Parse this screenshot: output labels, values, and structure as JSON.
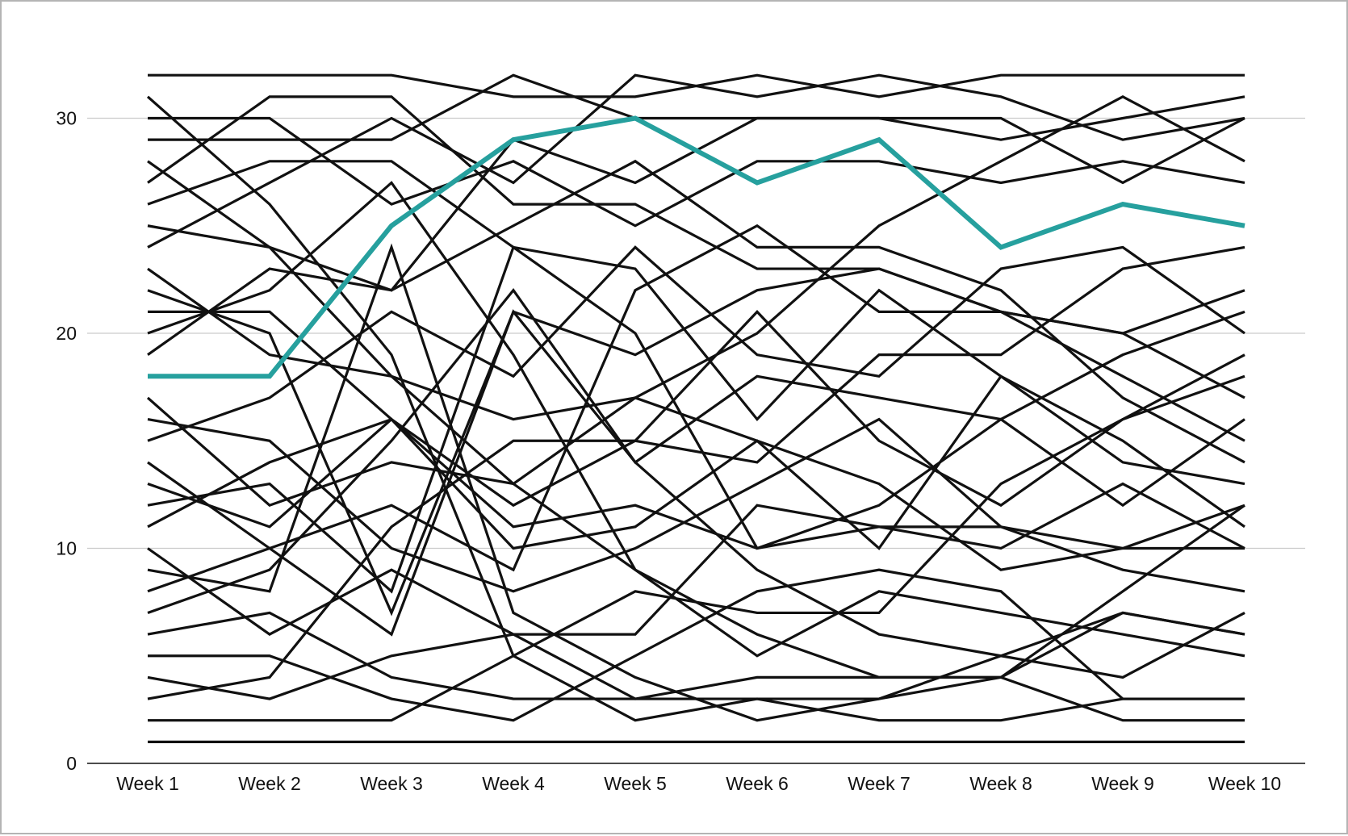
{
  "chart_data": {
    "type": "line",
    "title": "",
    "xlabel": "",
    "ylabel": "",
    "categories": [
      "Week 1",
      "Week 2",
      "Week 3",
      "Week 4",
      "Week 5",
      "Week 6",
      "Week 7",
      "Week 8",
      "Week 9",
      "Week 10"
    ],
    "y_ticks": [
      "0",
      "10",
      "20",
      "30"
    ],
    "ylim": [
      0,
      33
    ],
    "grid": "horizontal",
    "legend": "none",
    "colors": {
      "highlight": "#26a09e",
      "series": "#111111",
      "grid": "#cccccc",
      "axis": "#111111",
      "frame": "#b4b4b4"
    },
    "highlight_series": {
      "values": [
        18,
        18,
        25,
        29,
        30,
        27,
        29,
        24,
        26,
        25
      ]
    },
    "series": [
      {
        "values": [
          32,
          32,
          32,
          31,
          31,
          32,
          31,
          32,
          32,
          32
        ]
      },
      {
        "values": [
          31,
          26,
          19,
          5,
          2,
          3,
          2,
          2,
          3,
          3
        ]
      },
      {
        "values": [
          30,
          30,
          26,
          28,
          25,
          28,
          28,
          27,
          28,
          27
        ]
      },
      {
        "values": [
          29,
          29,
          29,
          32,
          30,
          30,
          30,
          30,
          27,
          30
        ]
      },
      {
        "values": [
          28,
          24,
          22,
          29,
          27,
          30,
          30,
          29,
          30,
          31
        ]
      },
      {
        "values": [
          27,
          31,
          31,
          26,
          26,
          23,
          23,
          21,
          18,
          15
        ]
      },
      {
        "values": [
          26,
          28,
          28,
          24,
          23,
          16,
          22,
          18,
          14,
          13
        ]
      },
      {
        "values": [
          25,
          24,
          18,
          13,
          9,
          6,
          4,
          4,
          2,
          2
        ]
      },
      {
        "values": [
          24,
          27,
          30,
          27,
          32,
          31,
          32,
          31,
          29,
          30
        ]
      },
      {
        "values": [
          23,
          19,
          18,
          16,
          17,
          20,
          25,
          28,
          31,
          28
        ]
      },
      {
        "values": [
          22,
          20,
          7,
          21,
          19,
          22,
          23,
          21,
          20,
          22
        ]
      },
      {
        "values": [
          21,
          21,
          16,
          11,
          12,
          10,
          12,
          16,
          12,
          16
        ]
      },
      {
        "values": [
          20,
          22,
          27,
          19,
          9,
          5,
          8,
          7,
          6,
          5
        ]
      },
      {
        "values": [
          19,
          23,
          22,
          25,
          28,
          24,
          24,
          22,
          17,
          14
        ]
      },
      {
        "values": [
          17,
          12,
          14,
          13,
          17,
          15,
          13,
          9,
          10,
          12
        ]
      },
      {
        "values": [
          16,
          15,
          10,
          8,
          10,
          13,
          16,
          11,
          9,
          8
        ]
      },
      {
        "values": [
          15,
          17,
          21,
          18,
          24,
          19,
          18,
          23,
          24,
          20
        ]
      },
      {
        "values": [
          14,
          10,
          6,
          21,
          14,
          18,
          17,
          16,
          19,
          21
        ]
      },
      {
        "values": [
          13,
          11,
          16,
          10,
          11,
          15,
          10,
          18,
          15,
          11
        ]
      },
      {
        "values": [
          12,
          13,
          8,
          24,
          20,
          10,
          11,
          10,
          13,
          10
        ]
      },
      {
        "values": [
          11,
          14,
          16,
          12,
          15,
          21,
          15,
          12,
          16,
          19
        ]
      },
      {
        "values": [
          10,
          6,
          9,
          6,
          3,
          3,
          3,
          4,
          8,
          12
        ]
      },
      {
        "values": [
          9,
          8,
          24,
          7,
          4,
          2,
          3,
          5,
          7,
          6
        ]
      },
      {
        "values": [
          8,
          10,
          12,
          9,
          22,
          25,
          21,
          21,
          20,
          17
        ]
      },
      {
        "values": [
          7,
          9,
          15,
          22,
          14,
          9,
          6,
          5,
          4,
          7
        ]
      },
      {
        "values": [
          6,
          7,
          4,
          3,
          3,
          4,
          4,
          4,
          7,
          6
        ]
      },
      {
        "values": [
          5,
          5,
          3,
          2,
          5,
          8,
          9,
          8,
          3,
          3
        ]
      },
      {
        "values": [
          4,
          3,
          5,
          6,
          6,
          12,
          11,
          11,
          10,
          10
        ]
      },
      {
        "values": [
          3,
          4,
          11,
          15,
          15,
          14,
          19,
          19,
          23,
          24
        ]
      },
      {
        "values": [
          2,
          2,
          2,
          5,
          8,
          7,
          7,
          13,
          16,
          18
        ]
      },
      {
        "values": [
          1,
          1,
          1,
          1,
          1,
          1,
          1,
          1,
          1,
          1
        ]
      }
    ]
  }
}
